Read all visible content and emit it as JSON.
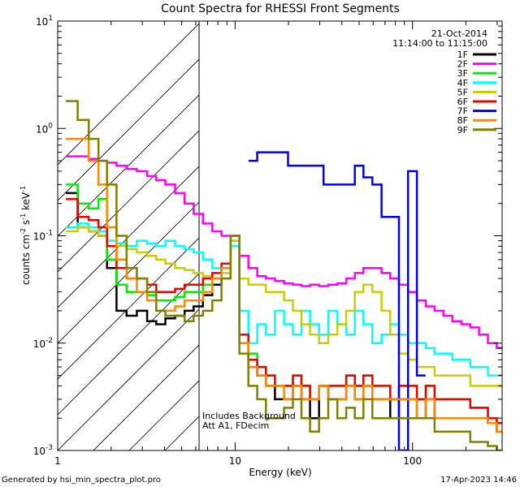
{
  "chart_data": {
    "type": "line",
    "title": "Count Spectra for RHESSI Front Segments",
    "xlabel": "Energy (keV)",
    "ylabel_parts": [
      "counts cm",
      "-2",
      " s",
      "-1",
      " keV",
      "-1"
    ],
    "xscale": "log",
    "yscale": "log",
    "xlim": [
      1,
      320
    ],
    "ylim": [
      0.001,
      10
    ],
    "x_ticks": [
      {
        "value": 1,
        "label": "1"
      },
      {
        "value": 10,
        "label": "10"
      },
      {
        "value": 100,
        "label": "100"
      }
    ],
    "y_ticks": [
      {
        "value": 0.001,
        "base": "10",
        "exp": "-3"
      },
      {
        "value": 0.01,
        "base": "10",
        "exp": "-2"
      },
      {
        "value": 0.1,
        "base": "10",
        "exp": "-1"
      },
      {
        "value": 1,
        "base": "10",
        "exp": "0"
      },
      {
        "value": 10,
        "base": "10",
        "exp": "1"
      }
    ],
    "hatched_region": [
      1,
      6
    ],
    "legend_position": "top-right",
    "header_lines": [
      "21-Oct-2014",
      "11:14:00 to 11:15:00"
    ],
    "annotation_lines": [
      "Includes Background",
      "Att A1, FDecim"
    ],
    "footer_left": "Generated by hsi_min_spectra_plot.pro",
    "footer_right": "17-Apr-2023 14:46",
    "series": [
      {
        "name": "1F",
        "color": "#000000",
        "x": [
          1.2,
          1.4,
          1.6,
          1.8,
          2.0,
          2.3,
          2.6,
          3.0,
          3.4,
          3.8,
          4.3,
          4.9,
          5.5,
          6.2,
          7.0,
          7.9,
          8.9,
          10.0,
          11.2,
          12.6,
          14.1,
          15.8,
          17.8,
          20,
          22.4,
          25,
          28,
          31.6,
          35.5,
          40,
          44.7,
          50,
          56,
          63,
          71,
          79,
          89,
          100,
          112,
          126,
          141,
          158,
          178,
          200,
          224,
          251,
          282,
          316
        ],
        "y": [
          0.25,
          0.12,
          0.11,
          0.1,
          0.05,
          0.02,
          0.018,
          0.02,
          0.016,
          0.015,
          0.017,
          0.018,
          0.02,
          0.022,
          0.028,
          0.035,
          0.05,
          0.1,
          0.01,
          0.006,
          0.005,
          0.004,
          0.003,
          0.003,
          0.004,
          0.003,
          0.002,
          0.004,
          0.003,
          0.003,
          0.004,
          0.003,
          0.004,
          0.003,
          0.003,
          0.002,
          0.003,
          0.003,
          0.002,
          0.003,
          0.002,
          0.002,
          0.002,
          0.002,
          0.002,
          0.002,
          0.0018,
          0.0015
        ]
      },
      {
        "name": "2F",
        "color": "#ff00ff",
        "x": [
          1.2,
          1.4,
          1.6,
          1.8,
          2.0,
          2.3,
          2.6,
          3.0,
          3.4,
          3.8,
          4.3,
          4.9,
          5.5,
          6.2,
          7.0,
          7.9,
          8.9,
          10.0,
          11.2,
          12.6,
          14.1,
          15.8,
          17.8,
          20,
          22.4,
          25,
          28,
          31.6,
          35.5,
          40,
          44.7,
          50,
          56,
          63,
          71,
          79,
          89,
          100,
          112,
          126,
          141,
          158,
          178,
          200,
          224,
          251,
          282,
          316
        ],
        "y": [
          0.55,
          0.55,
          0.52,
          0.5,
          0.48,
          0.45,
          0.42,
          0.4,
          0.36,
          0.33,
          0.3,
          0.25,
          0.2,
          0.16,
          0.13,
          0.11,
          0.1,
          0.08,
          0.065,
          0.05,
          0.042,
          0.04,
          0.038,
          0.036,
          0.035,
          0.034,
          0.035,
          0.034,
          0.035,
          0.036,
          0.04,
          0.045,
          0.05,
          0.05,
          0.045,
          0.04,
          0.035,
          0.03,
          0.025,
          0.022,
          0.02,
          0.018,
          0.016,
          0.015,
          0.014,
          0.012,
          0.01,
          0.009
        ]
      },
      {
        "name": "3F",
        "color": "#00ee00",
        "x": [
          1.2,
          1.4,
          1.6,
          1.8,
          2.0,
          2.3,
          2.6,
          3.0,
          3.4,
          3.8,
          4.3,
          4.9,
          5.5,
          6.2,
          7.0,
          7.9,
          8.9,
          10.0,
          11.2,
          12.6,
          14.1,
          15.8,
          17.8,
          20,
          22.4,
          25,
          28,
          31.6,
          35.5,
          40,
          44.7,
          50,
          56,
          63,
          71,
          79,
          89,
          100,
          112,
          126,
          141,
          158,
          178,
          200,
          224,
          251,
          282,
          316
        ],
        "y": [
          0.3,
          0.2,
          0.18,
          0.22,
          0.06,
          0.035,
          0.03,
          0.03,
          0.028,
          0.025,
          0.025,
          0.027,
          0.03,
          0.03,
          0.035,
          0.04,
          0.05,
          0.09,
          0.012,
          0.008,
          0.006,
          0.005,
          0.004,
          0.004,
          0.005,
          0.004,
          0.003,
          0.004,
          0.004,
          0.004,
          0.005,
          0.004,
          0.005,
          0.004,
          0.004,
          0.003,
          0.004,
          0.004,
          0.003,
          0.004,
          0.003,
          0.003,
          0.003,
          0.003,
          0.0025,
          0.0025,
          0.002,
          0.0018
        ]
      },
      {
        "name": "4F",
        "color": "#00ffff",
        "x": [
          1.2,
          1.4,
          1.6,
          1.8,
          2.0,
          2.3,
          2.6,
          3.0,
          3.4,
          3.8,
          4.3,
          4.9,
          5.5,
          6.2,
          7.0,
          7.9,
          8.9,
          10.0,
          11.2,
          12.6,
          14.1,
          15.8,
          17.8,
          20,
          22.4,
          25,
          28,
          31.6,
          35.5,
          40,
          44.7,
          50,
          56,
          63,
          71,
          79,
          89,
          100,
          112,
          126,
          141,
          158,
          178,
          200,
          224,
          251,
          282,
          316
        ],
        "y": [
          0.12,
          0.13,
          0.12,
          0.11,
          0.09,
          0.085,
          0.08,
          0.09,
          0.085,
          0.08,
          0.09,
          0.08,
          0.075,
          0.07,
          0.06,
          0.05,
          0.05,
          0.08,
          0.02,
          0.01,
          0.015,
          0.012,
          0.02,
          0.015,
          0.012,
          0.02,
          0.015,
          0.012,
          0.02,
          0.015,
          0.012,
          0.02,
          0.015,
          0.01,
          0.012,
          0.015,
          0.012,
          0.01,
          0.01,
          0.009,
          0.008,
          0.008,
          0.007,
          0.007,
          0.006,
          0.006,
          0.005,
          0.005
        ]
      },
      {
        "name": "5F",
        "color": "#cccc00",
        "x": [
          1.2,
          1.4,
          1.6,
          1.8,
          2.0,
          2.3,
          2.6,
          3.0,
          3.4,
          3.8,
          4.3,
          4.9,
          5.5,
          6.2,
          7.0,
          7.9,
          8.9,
          10.0,
          11.2,
          12.6,
          14.1,
          15.8,
          17.8,
          20,
          22.4,
          25,
          28,
          31.6,
          35.5,
          40,
          44.7,
          50,
          56,
          63,
          71,
          79,
          89,
          100,
          112,
          126,
          141,
          158,
          178,
          200,
          224,
          251,
          282,
          316
        ],
        "y": [
          0.11,
          0.12,
          0.11,
          0.1,
          0.08,
          0.08,
          0.075,
          0.07,
          0.065,
          0.06,
          0.055,
          0.05,
          0.048,
          0.045,
          0.042,
          0.04,
          0.045,
          0.09,
          0.04,
          0.035,
          0.035,
          0.03,
          0.03,
          0.025,
          0.02,
          0.015,
          0.012,
          0.01,
          0.012,
          0.015,
          0.02,
          0.03,
          0.035,
          0.03,
          0.02,
          0.012,
          0.008,
          0.007,
          0.006,
          0.006,
          0.005,
          0.005,
          0.005,
          0.005,
          0.004,
          0.004,
          0.004,
          0.004
        ]
      },
      {
        "name": "6F",
        "color": "#ee0000",
        "x": [
          1.2,
          1.4,
          1.6,
          1.8,
          2.0,
          2.3,
          2.6,
          3.0,
          3.4,
          3.8,
          4.3,
          4.9,
          5.5,
          6.2,
          7.0,
          7.9,
          8.9,
          10.0,
          11.2,
          12.6,
          14.1,
          15.8,
          17.8,
          20,
          22.4,
          25,
          28,
          31.6,
          35.5,
          40,
          44.7,
          50,
          56,
          63,
          71,
          79,
          89,
          100,
          112,
          126,
          141,
          158,
          178,
          200,
          224,
          251,
          282,
          316
        ],
        "y": [
          0.22,
          0.15,
          0.14,
          0.12,
          0.08,
          0.05,
          0.04,
          0.04,
          0.035,
          0.03,
          0.03,
          0.032,
          0.035,
          0.035,
          0.04,
          0.045,
          0.055,
          0.1,
          0.012,
          0.007,
          0.006,
          0.005,
          0.004,
          0.004,
          0.005,
          0.004,
          0.003,
          0.004,
          0.004,
          0.004,
          0.005,
          0.004,
          0.005,
          0.004,
          0.004,
          0.003,
          0.004,
          0.004,
          0.003,
          0.004,
          0.003,
          0.003,
          0.003,
          0.003,
          0.0025,
          0.0025,
          0.002,
          0.0018
        ]
      },
      {
        "name": "7F",
        "color": "#0000ee",
        "x": [
          12.6,
          14.1,
          28,
          35.5,
          40,
          44.7,
          50,
          56,
          63,
          71,
          79,
          89,
          100,
          112
        ],
        "y": [
          0.5,
          0.6,
          0.45,
          0.3,
          0.3,
          0.3,
          0.45,
          0.35,
          0.3,
          0.15,
          0.15,
          0.001,
          0.4,
          0.005
        ]
      },
      {
        "name": "8F",
        "color": "#ff8800",
        "x": [
          1.2,
          1.4,
          1.6,
          1.8,
          2.0,
          2.3,
          2.6,
          3.0,
          3.4,
          3.8,
          4.3,
          4.9,
          5.5,
          6.2,
          7.0,
          7.9,
          8.9,
          10.0,
          11.2,
          12.6,
          14.1,
          15.8,
          17.8,
          20,
          22.4,
          25,
          28,
          31.6,
          35.5,
          40,
          44.7,
          50,
          56,
          63,
          71,
          79,
          89,
          100,
          112,
          126,
          141,
          158,
          178,
          200,
          224,
          251,
          282,
          316
        ],
        "y": [
          0.8,
          0.8,
          0.5,
          0.3,
          0.12,
          0.06,
          0.04,
          0.03,
          0.025,
          0.02,
          0.02,
          0.022,
          0.025,
          0.025,
          0.03,
          0.04,
          0.05,
          0.1,
          0.01,
          0.006,
          0.005,
          0.004,
          0.004,
          0.003,
          0.004,
          0.003,
          0.003,
          0.004,
          0.003,
          0.003,
          0.004,
          0.003,
          0.004,
          0.003,
          0.003,
          0.003,
          0.003,
          0.003,
          0.002,
          0.003,
          0.002,
          0.002,
          0.002,
          0.002,
          0.002,
          0.002,
          0.0018,
          0.0015
        ]
      },
      {
        "name": "9F",
        "color": "#808000",
        "x": [
          1.2,
          1.4,
          1.6,
          1.8,
          2.0,
          2.3,
          2.6,
          3.0,
          3.4,
          3.8,
          4.3,
          4.9,
          5.5,
          6.2,
          7.0,
          7.9,
          8.9,
          10.0,
          11.2,
          12.6,
          14.1,
          15.8,
          17.8,
          20,
          22.4,
          25,
          28,
          31.6,
          35.5,
          40,
          44.7,
          50,
          56,
          63,
          71,
          79,
          89,
          100,
          112,
          126,
          141,
          158,
          178,
          200,
          224,
          251,
          282,
          316
        ],
        "y": [
          1.8,
          1.2,
          0.8,
          0.5,
          0.3,
          0.1,
          0.05,
          0.04,
          0.03,
          0.02,
          0.018,
          0.018,
          0.016,
          0.018,
          0.02,
          0.025,
          0.04,
          0.1,
          0.008,
          0.004,
          0.003,
          0.002,
          0.002,
          0.0025,
          0.003,
          0.002,
          0.0015,
          0.002,
          0.003,
          0.002,
          0.0025,
          0.002,
          0.003,
          0.002,
          0.002,
          0.002,
          0.002,
          0.002,
          0.002,
          0.002,
          0.0015,
          0.0015,
          0.0015,
          0.0015,
          0.0012,
          0.0012,
          0.0011,
          0.001
        ]
      }
    ]
  }
}
